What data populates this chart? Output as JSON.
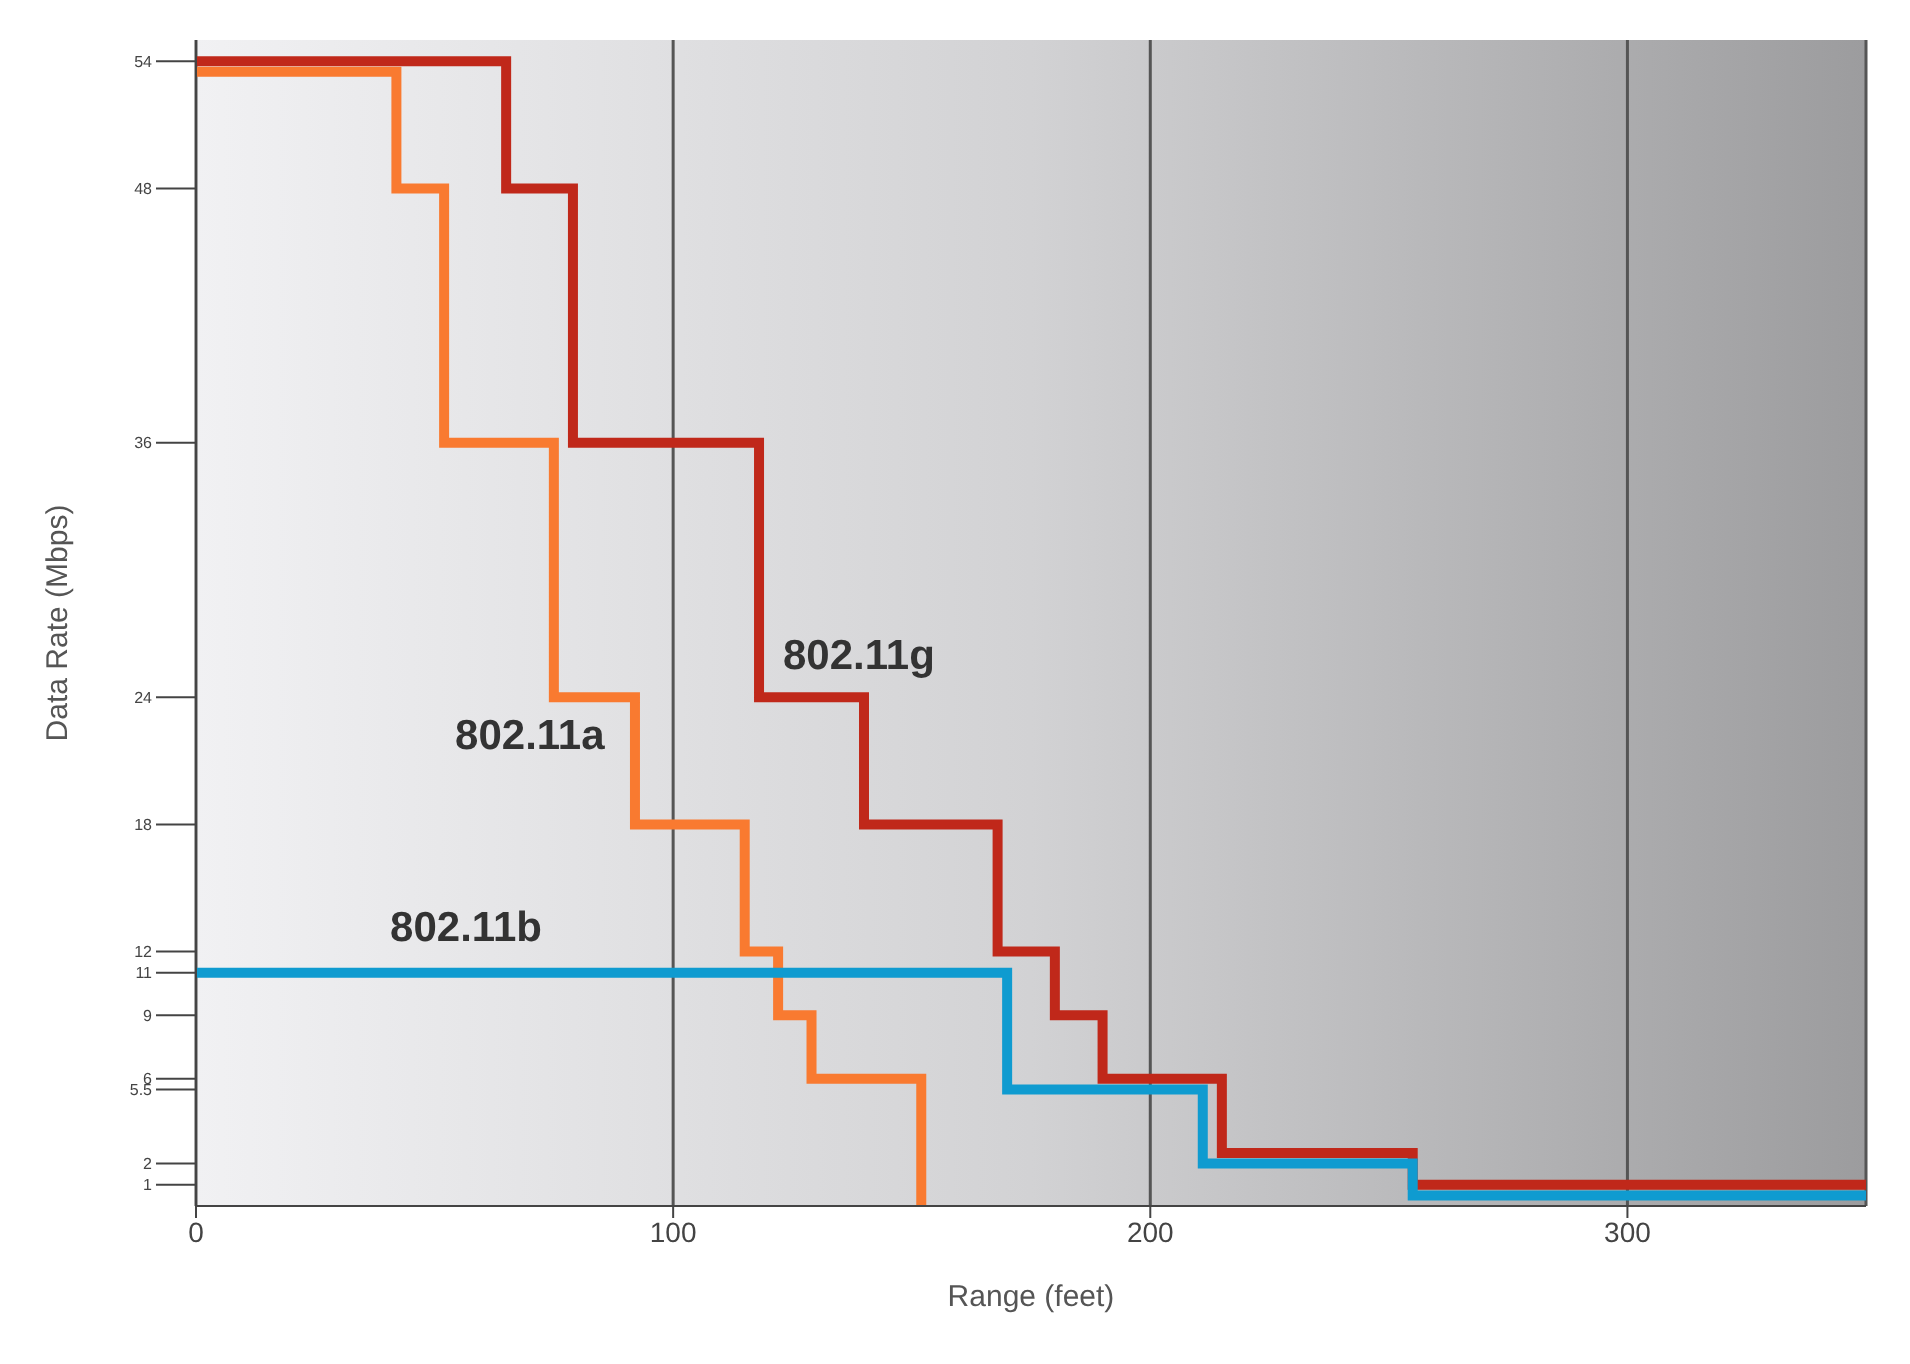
{
  "chart_data": {
    "type": "step",
    "xlabel": "Range (feet)",
    "ylabel": "Data Rate (Mbps)",
    "xlim": [
      0,
      350
    ],
    "xticks": [
      0,
      100,
      200,
      300
    ],
    "ylim": [
      0,
      55
    ],
    "yticks": [
      1,
      2,
      5.5,
      6,
      9,
      11,
      12,
      18,
      24,
      36,
      48,
      54
    ],
    "grid": "x",
    "series": [
      {
        "name": "802.11g",
        "color": "#c0281a",
        "x": [
          0,
          65,
          79,
          118,
          140,
          168,
          180,
          190,
          215,
          255,
          350
        ],
        "values": [
          54,
          48,
          36,
          24,
          18,
          12,
          9,
          6,
          2.5,
          1,
          1
        ]
      },
      {
        "name": "802.11a",
        "color": "#f97a30",
        "x": [
          0,
          42,
          52,
          75,
          92,
          115,
          122,
          129,
          152
        ],
        "values": [
          53.5,
          48,
          36,
          24,
          18,
          12,
          9,
          6,
          0
        ]
      },
      {
        "name": "802.11b",
        "color": "#0f9bd0",
        "x": [
          0,
          170,
          211,
          255,
          350
        ],
        "values": [
          11,
          5.5,
          2,
          0.5,
          0.5
        ]
      }
    ]
  }
}
